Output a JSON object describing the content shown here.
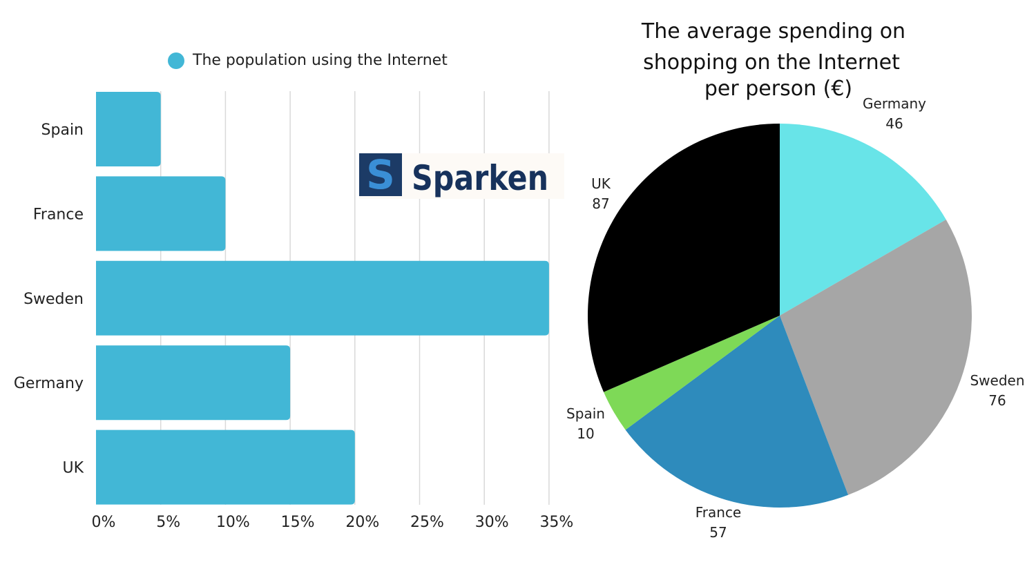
{
  "logo": {
    "text": "Sparken",
    "letter": "S"
  },
  "chart_data": [
    {
      "type": "bar",
      "orientation": "horizontal",
      "categories": [
        "Spain",
        "France",
        "Sweden",
        "Germany",
        "UK"
      ],
      "series": [
        {
          "name": "The population using the Internet",
          "values": [
            5,
            10,
            35,
            15,
            20
          ]
        }
      ],
      "xlim": [
        0,
        35
      ],
      "xticks": [
        "0%",
        "5%",
        "10%",
        "15%",
        "20%",
        "25%",
        "30%",
        "35%"
      ],
      "legend_position": "top",
      "grid": true,
      "bar_color": "#42b7d6"
    },
    {
      "type": "pie",
      "title_lines": [
        "The average spending on",
        "shopping on the Internet",
        "per person (€)"
      ],
      "slices": [
        {
          "label": "Germany",
          "value": 46,
          "color": "#68e4e8"
        },
        {
          "label": "Sweden",
          "value": 76,
          "color": "#a6a6a6"
        },
        {
          "label": "France",
          "value": 57,
          "color": "#2e8bbc"
        },
        {
          "label": "Spain",
          "value": 10,
          "color": "#7ed957"
        },
        {
          "label": "UK",
          "value": 87,
          "color": "#000000"
        }
      ]
    }
  ]
}
